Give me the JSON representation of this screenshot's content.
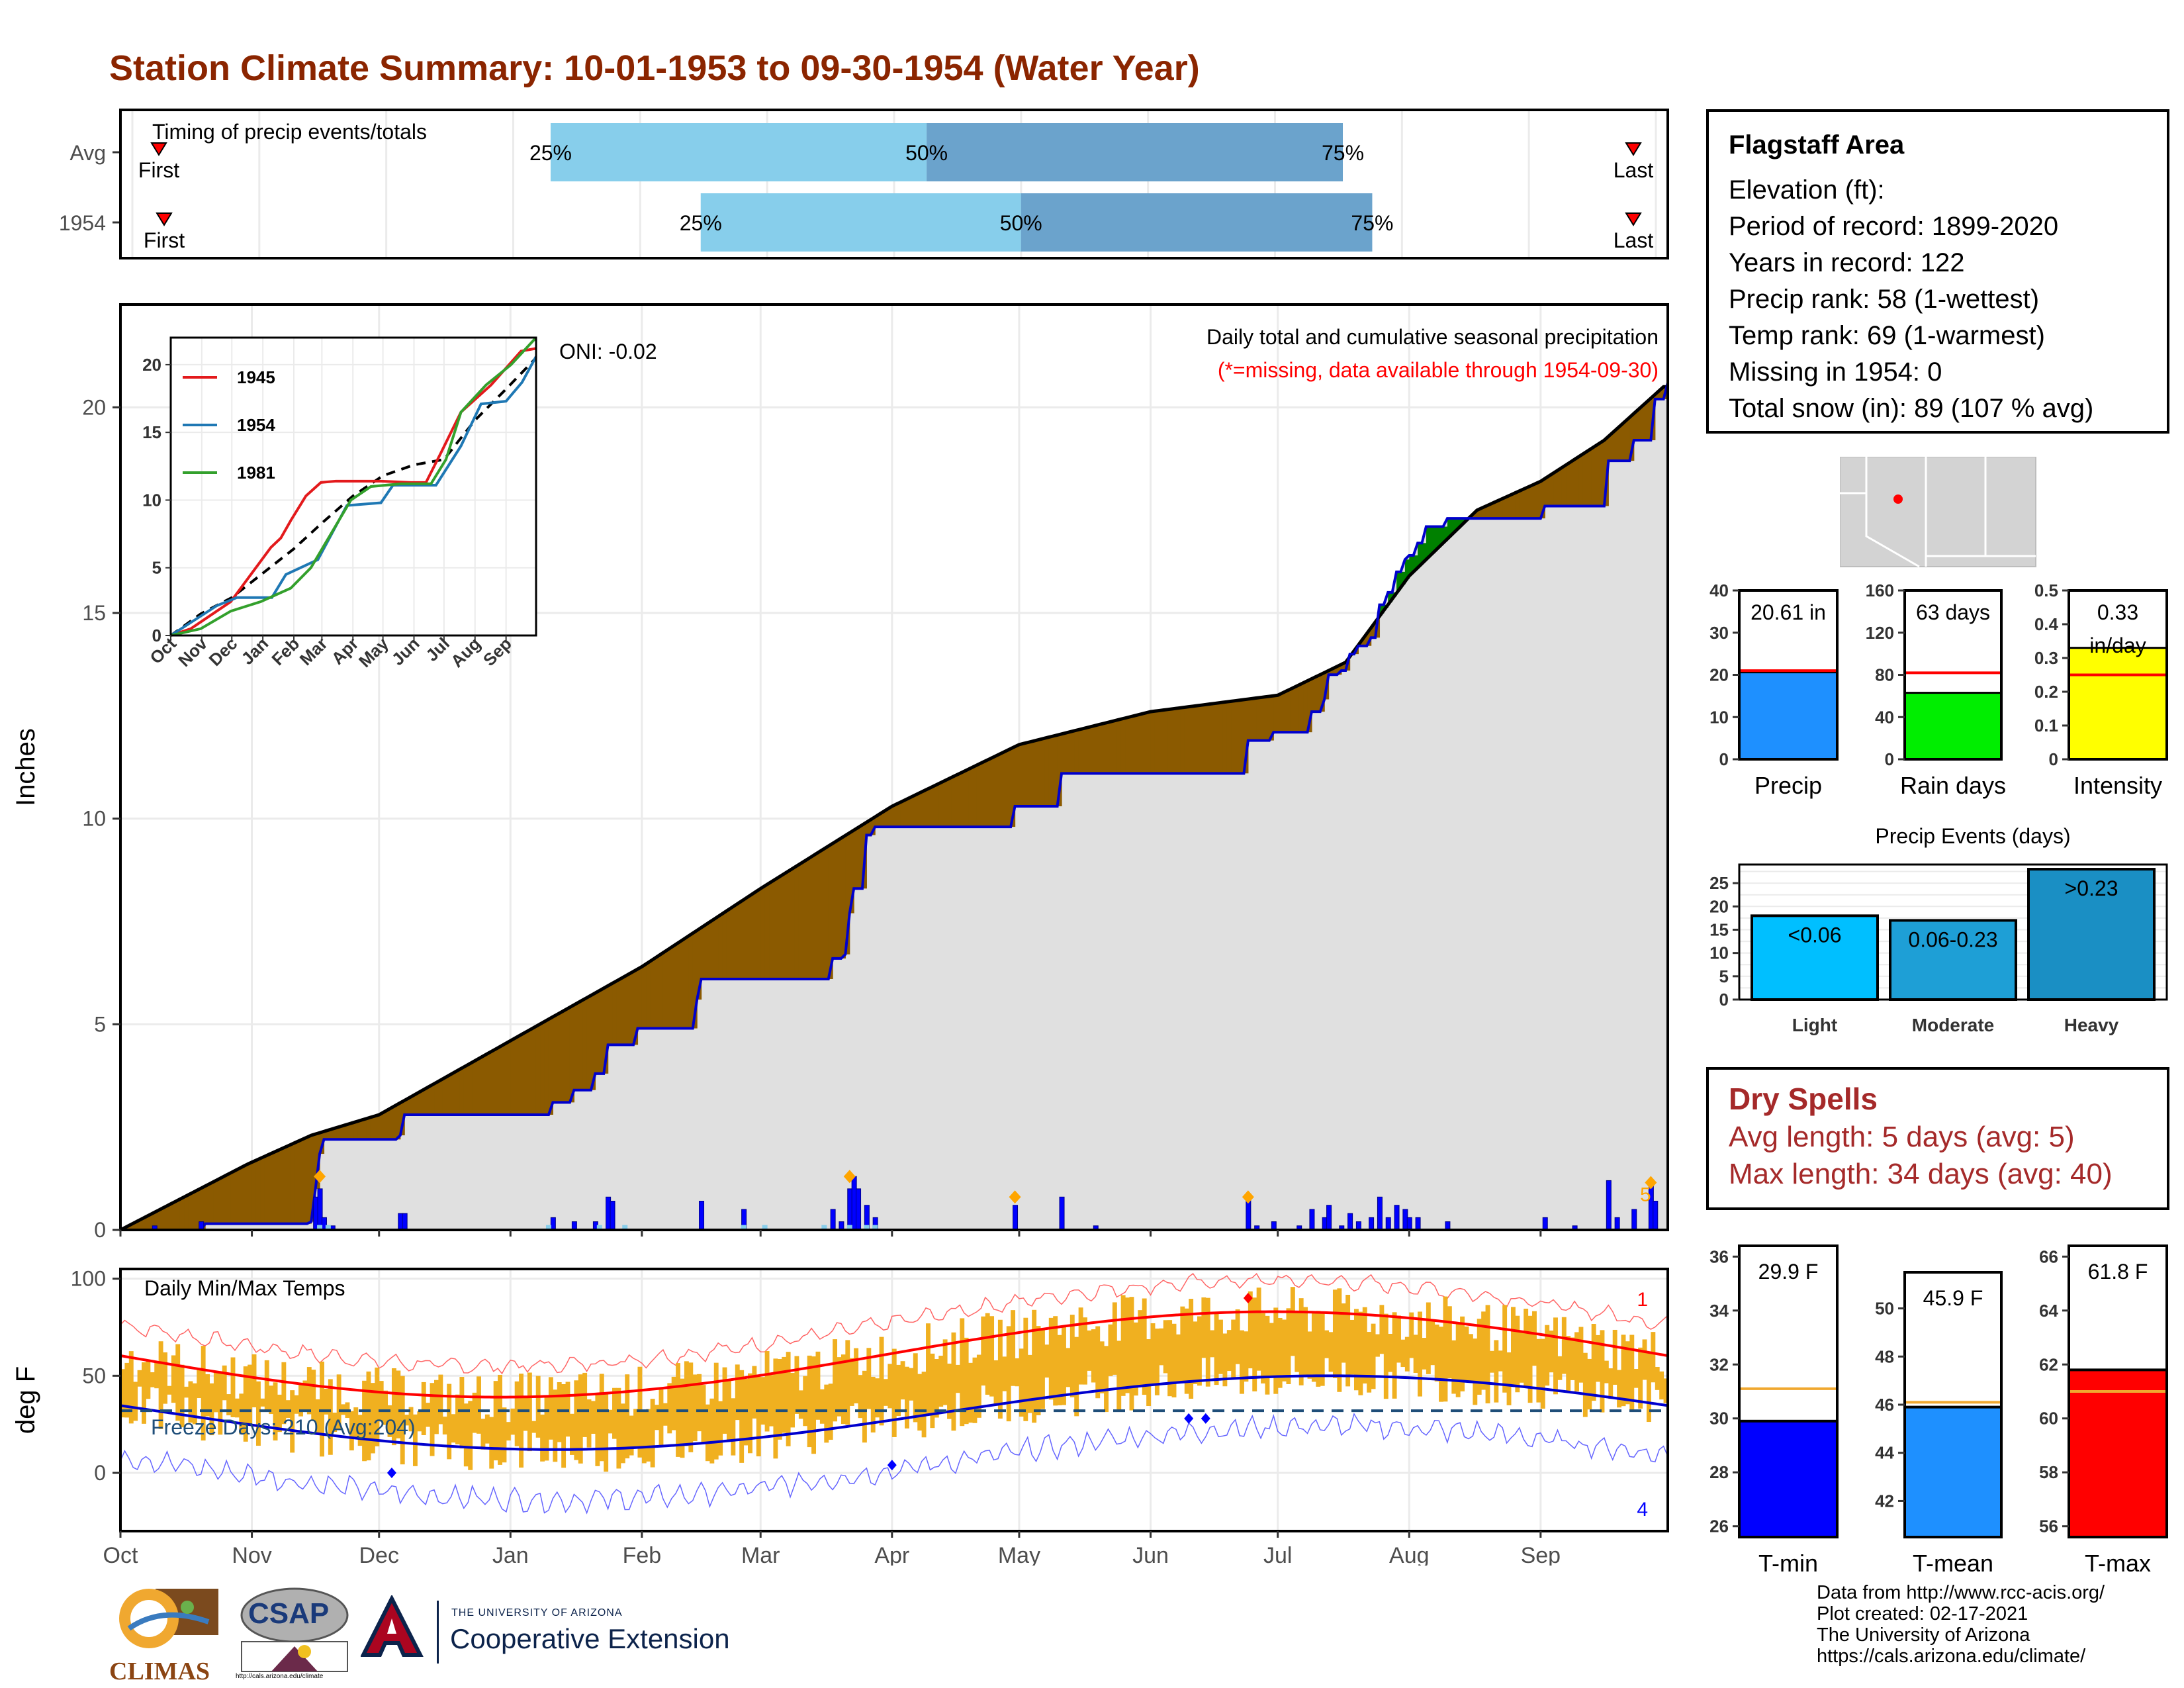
{
  "title": "Station Climate Summary: 10-01-1953 to 09-30-1954 (Water Year)",
  "timing": {
    "label": "Timing of precip events/totals",
    "rows": [
      {
        "name": "Avg",
        "q25": 0.278,
        "q50": 0.521,
        "q75": 0.79,
        "first_label": "First",
        "last_label": "Last"
      },
      {
        "name": "1954",
        "q25": 0.375,
        "q50": 0.582,
        "q75": 0.809,
        "first_label": "First",
        "last_label": "Last"
      }
    ],
    "pct_labels": [
      "25%",
      "50%",
      "75%"
    ]
  },
  "precip_chart": {
    "ylabel": "Inches",
    "yticks": [
      0,
      5,
      10,
      15,
      20
    ],
    "ylim": [
      0,
      22.5
    ],
    "header": "Daily total and cumulative seasonal precipitation",
    "missing_note": "(*=missing, data available through 1954-09-30)",
    "oni": "ONI: -0.02",
    "avg_cumulative": [
      [
        0,
        0
      ],
      [
        30,
        1.6
      ],
      [
        45,
        2.3
      ],
      [
        61,
        2.8
      ],
      [
        92,
        4.6
      ],
      [
        123,
        6.4
      ],
      [
        151,
        8.3
      ],
      [
        182,
        10.3
      ],
      [
        212,
        11.8
      ],
      [
        243,
        12.6
      ],
      [
        273,
        13.0
      ],
      [
        289,
        13.8
      ],
      [
        304,
        15.9
      ],
      [
        320,
        17.5
      ],
      [
        335,
        18.2
      ],
      [
        350,
        19.2
      ],
      [
        364,
        20.5
      ]
    ],
    "yr_cumulative": [
      [
        0,
        0
      ],
      [
        10,
        0
      ],
      [
        20,
        0.15
      ],
      [
        45,
        0.2
      ],
      [
        46,
        1.0
      ],
      [
        47,
        1.85
      ],
      [
        48,
        2.2
      ],
      [
        66,
        2.3
      ],
      [
        67,
        2.8
      ],
      [
        101,
        2.8
      ],
      [
        102,
        3.1
      ],
      [
        107,
        3.4
      ],
      [
        112,
        3.8
      ],
      [
        115,
        4.5
      ],
      [
        121,
        4.5
      ],
      [
        122,
        4.9
      ],
      [
        146,
        4.9
      ],
      [
        147,
        5.6
      ],
      [
        136,
        5.6
      ],
      [
        137,
        6.1
      ],
      [
        167,
        6.1
      ],
      [
        168,
        6.6
      ],
      [
        171,
        6.7
      ],
      [
        172,
        7.7
      ],
      [
        173,
        8.3
      ],
      [
        176,
        9.6
      ],
      [
        178,
        9.8
      ],
      [
        210,
        9.8
      ],
      [
        211,
        10.3
      ],
      [
        221,
        10.3
      ],
      [
        222,
        11.1
      ],
      [
        265,
        11.1
      ],
      [
        266,
        11.9
      ],
      [
        272,
        12.1
      ],
      [
        280,
        12.1
      ],
      [
        281,
        12.6
      ],
      [
        284,
        12.9
      ],
      [
        285,
        13.5
      ],
      [
        288,
        13.6
      ],
      [
        290,
        14.0
      ],
      [
        292,
        14.2
      ],
      [
        295,
        14.4
      ],
      [
        297,
        15.2
      ],
      [
        299,
        15.5
      ],
      [
        301,
        16.0
      ],
      [
        303,
        16.3
      ],
      [
        304,
        16.4
      ],
      [
        306,
        16.7
      ],
      [
        308,
        17.1
      ],
      [
        311,
        17.1
      ],
      [
        313,
        17.3
      ],
      [
        335,
        17.3
      ],
      [
        336,
        17.6
      ],
      [
        350,
        17.6
      ],
      [
        351,
        18.7
      ],
      [
        357,
        19.2
      ],
      [
        362,
        20.2
      ],
      [
        365,
        20.6
      ]
    ],
    "daily_bars": [
      [
        8,
        0.1
      ],
      [
        19,
        0.2
      ],
      [
        46,
        0.8
      ],
      [
        47,
        1.0
      ],
      [
        48,
        0.3
      ],
      [
        50,
        0.1
      ],
      [
        66,
        0.4
      ],
      [
        67,
        0.4
      ],
      [
        102,
        0.3
      ],
      [
        107,
        0.2
      ],
      [
        112,
        0.2
      ],
      [
        115,
        0.8
      ],
      [
        116,
        0.7
      ],
      [
        137,
        0.7
      ],
      [
        147,
        0.5
      ],
      [
        168,
        0.5
      ],
      [
        170,
        0.2
      ],
      [
        172,
        1.0
      ],
      [
        173,
        1.3
      ],
      [
        174,
        1.0
      ],
      [
        176,
        0.6
      ],
      [
        178,
        0.3
      ],
      [
        211,
        0.6
      ],
      [
        222,
        0.8
      ],
      [
        230,
        0.1
      ],
      [
        266,
        0.8
      ],
      [
        268,
        0.1
      ],
      [
        272,
        0.2
      ],
      [
        278,
        0.1
      ],
      [
        281,
        0.5
      ],
      [
        284,
        0.3
      ],
      [
        285,
        0.6
      ],
      [
        288,
        0.1
      ],
      [
        290,
        0.4
      ],
      [
        292,
        0.2
      ],
      [
        295,
        0.3
      ],
      [
        297,
        0.8
      ],
      [
        299,
        0.3
      ],
      [
        301,
        0.6
      ],
      [
        303,
        0.5
      ],
      [
        304,
        0.3
      ],
      [
        306,
        0.3
      ],
      [
        313,
        0.2
      ],
      [
        336,
        0.3
      ],
      [
        343,
        0.1
      ],
      [
        351,
        1.2
      ],
      [
        353,
        0.3
      ],
      [
        357,
        0.5
      ],
      [
        361,
        1.1
      ],
      [
        362,
        0.7
      ]
    ],
    "orange_markers": [
      [
        47,
        1.3
      ],
      [
        172,
        1.3
      ],
      [
        211,
        0.8
      ],
      [
        266,
        0.8
      ],
      [
        361,
        1.15
      ]
    ],
    "marker_count_label": "5",
    "month_labels": [
      "Oct",
      "Nov",
      "Dec",
      "Jan",
      "Feb",
      "Mar",
      "Apr",
      "May",
      "Jun",
      "Jul",
      "Aug",
      "Sep"
    ]
  },
  "inset_chart": {
    "yticks": [
      0,
      5,
      10,
      15,
      20
    ],
    "ylim": [
      0,
      22
    ],
    "xticks": [
      "Oct",
      "Nov",
      "Dec",
      "Jan",
      "Feb",
      "Mar",
      "Apr",
      "May",
      "Jun",
      "Jul",
      "Aug",
      "Sep"
    ],
    "series": [
      {
        "name": "1945",
        "color": "#e31a1c",
        "points": [
          [
            0,
            0
          ],
          [
            20,
            0.5
          ],
          [
            40,
            1.5
          ],
          [
            60,
            2.5
          ],
          [
            80,
            4.5
          ],
          [
            100,
            6.5
          ],
          [
            110,
            7.2
          ],
          [
            120,
            8.5
          ],
          [
            135,
            10.3
          ],
          [
            150,
            11.3
          ],
          [
            165,
            11.4
          ],
          [
            180,
            11.4
          ],
          [
            210,
            11.4
          ],
          [
            240,
            11.3
          ],
          [
            255,
            11.3
          ],
          [
            270,
            13.5
          ],
          [
            290,
            16.5
          ],
          [
            320,
            18.5
          ],
          [
            350,
            21
          ],
          [
            365,
            21.2
          ]
        ]
      },
      {
        "name": "1954",
        "color": "#1f78b4",
        "points": [
          [
            0,
            0
          ],
          [
            46,
            2.2
          ],
          [
            66,
            2.8
          ],
          [
            101,
            2.8
          ],
          [
            115,
            4.5
          ],
          [
            147,
            5.6
          ],
          [
            176,
            9.6
          ],
          [
            210,
            9.8
          ],
          [
            222,
            11.1
          ],
          [
            265,
            11.1
          ],
          [
            290,
            14.0
          ],
          [
            310,
            17.1
          ],
          [
            335,
            17.3
          ],
          [
            351,
            18.7
          ],
          [
            365,
            20.6
          ]
        ]
      },
      {
        "name": "1981",
        "color": "#33a02c",
        "points": [
          [
            0,
            0
          ],
          [
            30,
            0.5
          ],
          [
            60,
            1.8
          ],
          [
            90,
            2.5
          ],
          [
            120,
            3.5
          ],
          [
            140,
            5
          ],
          [
            160,
            7.5
          ],
          [
            180,
            10
          ],
          [
            200,
            11
          ],
          [
            230,
            11.2
          ],
          [
            260,
            11.2
          ],
          [
            275,
            13
          ],
          [
            290,
            16.5
          ],
          [
            315,
            18.5
          ],
          [
            340,
            20
          ],
          [
            365,
            22
          ]
        ]
      }
    ],
    "avg_points": [
      [
        0,
        0
      ],
      [
        30,
        1.6
      ],
      [
        61,
        2.8
      ],
      [
        92,
        4.6
      ],
      [
        123,
        6.4
      ],
      [
        151,
        8.3
      ],
      [
        182,
        10.3
      ],
      [
        212,
        11.8
      ],
      [
        243,
        12.6
      ],
      [
        273,
        13.0
      ],
      [
        304,
        15.9
      ],
      [
        335,
        18.2
      ],
      [
        365,
        20.5
      ]
    ]
  },
  "temp_chart": {
    "ylabel": "deg F",
    "title": "Daily Min/Max Temps",
    "yticks": [
      0,
      50,
      100
    ],
    "ylim": [
      -30,
      105
    ],
    "freeze_label": "Freeze Days: 210 (Avg:204)",
    "freeze_line": 32,
    "record_high_count": "1",
    "record_low_count": "4",
    "month_labels": [
      "Oct",
      "Nov",
      "Dec",
      "Jan",
      "Feb",
      "Mar",
      "Apr",
      "May",
      "Jun",
      "Jul",
      "Aug",
      "Sep"
    ]
  },
  "info": {
    "station": "Flagstaff Area",
    "lines": [
      "Elevation (ft):",
      "Period of record: 1899-2020",
      "Years in record: 122",
      "Precip rank: 58 (1-wettest)",
      "Temp rank: 69 (1-warmest)",
      "Missing in 1954: 0",
      "Total snow (in): 89 (107 % avg)"
    ]
  },
  "summary_bars": [
    {
      "name": "Precip",
      "value": 20.61,
      "label": "20.61 in",
      "avg": 21,
      "ylim": [
        0,
        40
      ],
      "yticks": [
        0,
        10,
        20,
        30,
        40
      ],
      "color": "#1e90ff"
    },
    {
      "name": "Rain days",
      "value": 63,
      "label": "63 days",
      "avg": 82,
      "ylim": [
        0,
        160
      ],
      "yticks": [
        0,
        40,
        80,
        120,
        160
      ],
      "color": "#00ee00"
    },
    {
      "name": "Intensity",
      "value": 0.33,
      "label": "0.33",
      "label2": "in/day",
      "avg": 0.25,
      "ylim": [
        0,
        0.5
      ],
      "yticks": [
        0.0,
        0.1,
        0.2,
        0.3,
        0.4,
        0.5
      ],
      "color": "#ffff00"
    }
  ],
  "precip_events": {
    "title": "Precip Events (days)",
    "yticks": [
      0,
      5,
      10,
      15,
      20,
      25
    ],
    "ylim": [
      0,
      29
    ],
    "bars": [
      {
        "name": "Light",
        "label": "<0.06",
        "value": 18,
        "color": "#00bfff"
      },
      {
        "name": "Moderate",
        "label": "0.06-0.23",
        "value": 17,
        "color": "#1e9fd6"
      },
      {
        "name": "Heavy",
        "label": ">0.23",
        "value": 28,
        "color": "#1a8fc4"
      }
    ]
  },
  "dry_spells": {
    "title": "Dry Spells",
    "avg_line": "Avg length: 5 days (avg: 5)",
    "max_line": "Max length: 34 days (avg: 40)"
  },
  "temp_bars": [
    {
      "name": "T-min",
      "value": 29.9,
      "label": "29.9 F",
      "avg": 31.1,
      "ylim": [
        25.6,
        36.4
      ],
      "yticks": [
        26,
        28,
        30,
        32,
        34,
        36
      ],
      "color": "#0000ff"
    },
    {
      "name": "T-mean",
      "value": 45.9,
      "label": "45.9 F",
      "avg": 46.1,
      "ylim": [
        40.5,
        51.5
      ],
      "yticks": [
        42,
        44,
        46,
        48,
        50
      ],
      "color": "#1e90ff"
    },
    {
      "name": "T-max",
      "value": 61.8,
      "label": "61.8 F",
      "avg": 61.0,
      "ylim": [
        55.6,
        66.4
      ],
      "yticks": [
        56,
        58,
        60,
        62,
        64,
        66
      ],
      "color": "#ff0000"
    }
  ],
  "credits": [
    "Data from http://www.rcc-acis.org/",
    "Plot created: 02-17-2021",
    "The University of Arizona",
    "https://cals.arizona.edu/climate/"
  ],
  "logos": {
    "climas": "CLIMAS",
    "csap": "CSAP",
    "csap_url": "http://cals.arizona.edu/climate",
    "ua_small": "THE UNIVERSITY OF ARIZONA",
    "ua_big": "Cooperative Extension"
  },
  "colors": {
    "title": "#8b2500",
    "deficit": "#8b5a00",
    "surplus": "#008000",
    "year_line": "#0000cd",
    "avg_line": "#000000",
    "temp_bars": "#f0b020",
    "avg_max": "#ff0000",
    "avg_min": "#0000cd"
  }
}
